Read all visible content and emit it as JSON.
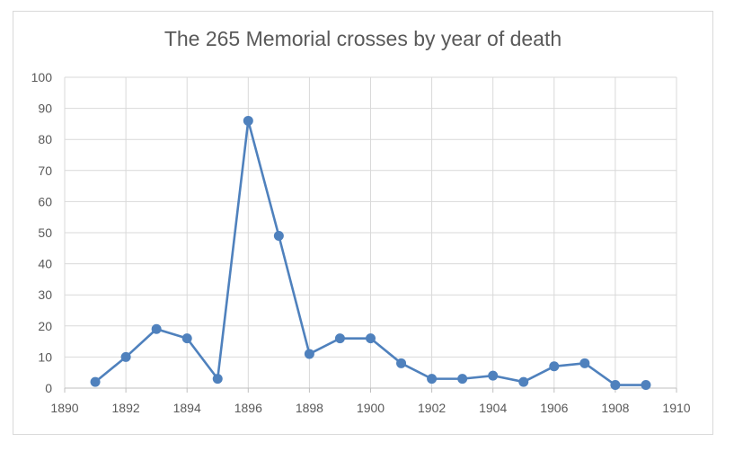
{
  "chart_data": {
    "type": "line",
    "title": "The 265 Memorial crosses by year of death",
    "xlabel": "",
    "ylabel": "",
    "xlim": [
      1890,
      1910
    ],
    "ylim": [
      0,
      100
    ],
    "xticks": [
      1890,
      1892,
      1894,
      1896,
      1898,
      1900,
      1902,
      1904,
      1906,
      1908,
      1910
    ],
    "yticks": [
      0,
      10,
      20,
      30,
      40,
      50,
      60,
      70,
      80,
      90,
      100
    ],
    "grid": true,
    "legend": "none",
    "series": [
      {
        "color": "#4f81bd",
        "x": [
          1891,
          1892,
          1893,
          1894,
          1895,
          1896,
          1897,
          1898,
          1899,
          1900,
          1901,
          1902,
          1903,
          1904,
          1905,
          1906,
          1907,
          1908,
          1909
        ],
        "y": [
          2,
          10,
          19,
          16,
          3,
          86,
          49,
          11,
          16,
          16,
          8,
          3,
          3,
          4,
          2,
          7,
          8,
          1,
          1
        ]
      }
    ]
  }
}
